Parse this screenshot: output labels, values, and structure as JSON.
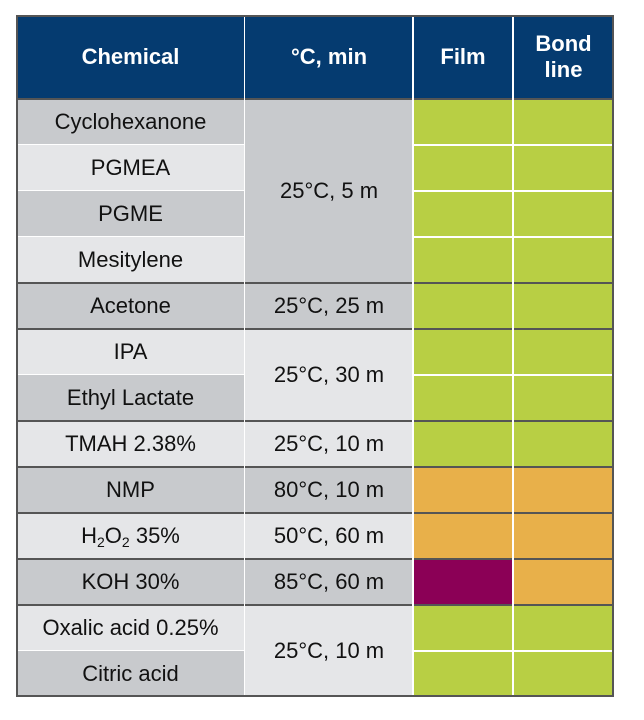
{
  "headers": [
    "Chemical",
    "°C, min",
    "Film",
    "Bond line"
  ],
  "colors": {
    "header_bg": "#053b70",
    "row_dark": "#c8cacd",
    "row_light": "#e5e6e8",
    "green": "#b8cf44",
    "orange": "#e8b04a",
    "purple": "#8b0056"
  },
  "rows": [
    {
      "chemical": "Cyclohexanone",
      "film": "green",
      "bond": "green"
    },
    {
      "chemical": "PGMEA",
      "film": "green",
      "bond": "green"
    },
    {
      "chemical": "PGME",
      "film": "green",
      "bond": "green"
    },
    {
      "chemical": "Mesitylene",
      "film": "green",
      "bond": "green"
    },
    {
      "chemical": "Acetone",
      "film": "green",
      "bond": "green"
    },
    {
      "chemical": "IPA",
      "film": "green",
      "bond": "green"
    },
    {
      "chemical": "Ethyl Lactate",
      "film": "green",
      "bond": "green"
    },
    {
      "chemical": "TMAH 2.38%",
      "film": "green",
      "bond": "green"
    },
    {
      "chemical": "NMP",
      "film": "orange",
      "bond": "orange"
    },
    {
      "chemical": "H2O2 35%",
      "chemical_parts": [
        "H",
        "2",
        "O",
        "2",
        " 35%"
      ],
      "film": "orange",
      "bond": "orange"
    },
    {
      "chemical": "KOH 30%",
      "film": "purple",
      "bond": "orange"
    },
    {
      "chemical": "Oxalic acid 0.25%",
      "film": "green",
      "bond": "green"
    },
    {
      "chemical": "Citric acid",
      "film": "green",
      "bond": "green"
    }
  ],
  "conditions": [
    {
      "text": "25°C, 5 m",
      "start": 0,
      "span": 4
    },
    {
      "text": "25°C, 25 m",
      "start": 4,
      "span": 1
    },
    {
      "text": "25°C, 30 m",
      "start": 5,
      "span": 2
    },
    {
      "text": "25°C, 10 m",
      "start": 7,
      "span": 1
    },
    {
      "text": "80°C, 10 m",
      "start": 8,
      "span": 1
    },
    {
      "text": "50°C, 60 m",
      "start": 9,
      "span": 1
    },
    {
      "text": "85°C, 60 m",
      "start": 10,
      "span": 1
    },
    {
      "text": "25°C, 10 m",
      "start": 11,
      "span": 2
    }
  ],
  "groups": [
    [
      0,
      4
    ],
    [
      4,
      5
    ],
    [
      5,
      7
    ],
    [
      7,
      8
    ],
    [
      8,
      9
    ],
    [
      9,
      10
    ],
    [
      10,
      11
    ],
    [
      11,
      13
    ]
  ]
}
